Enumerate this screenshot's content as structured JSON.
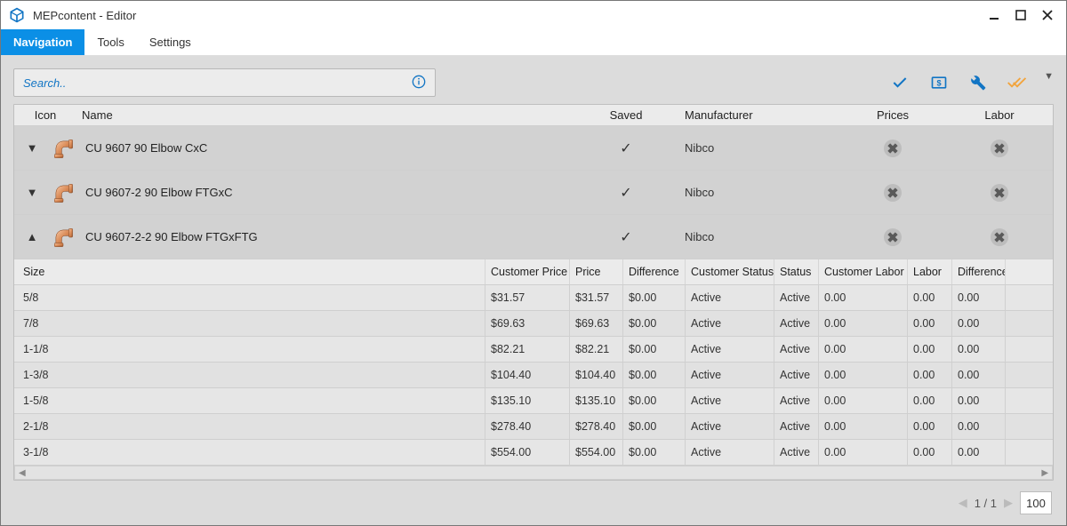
{
  "window": {
    "title": "MEPcontent - Editor"
  },
  "menu": {
    "navigation": "Navigation",
    "tools": "Tools",
    "settings": "Settings"
  },
  "search": {
    "placeholder": "Search.."
  },
  "colors": {
    "accent": "#0b8fe6",
    "link": "#1275c4",
    "warn": "#f2a43c",
    "panel_bg": "#dcdcdc",
    "grid_border": "#cfcfcf"
  },
  "columns": {
    "icon": "Icon",
    "name": "Name",
    "saved": "Saved",
    "manufacturer": "Manufacturer",
    "prices": "Prices",
    "labor": "Labor"
  },
  "categories": [
    {
      "name": "CU 9607 90 Elbow CxC",
      "saved": true,
      "manufacturer": "Nibco",
      "expanded": false
    },
    {
      "name": "CU 9607-2 90 Elbow FTGxC",
      "saved": true,
      "manufacturer": "Nibco",
      "expanded": false
    },
    {
      "name": "CU 9607-2-2 90 Elbow FTGxFTG",
      "saved": true,
      "manufacturer": "Nibco",
      "expanded": true
    }
  ],
  "detail": {
    "columns": {
      "size": "Size",
      "customer_price": "Customer Price",
      "price": "Price",
      "difference": "Difference",
      "customer_status": "Customer Status",
      "status": "Status",
      "customer_labor": "Customer Labor",
      "labor": "Labor",
      "difference2": "Difference"
    },
    "rows": [
      {
        "size": "5/8",
        "customer_price": "$31.57",
        "price": "$31.57",
        "difference": "$0.00",
        "customer_status": "Active",
        "status": "Active",
        "customer_labor": "0.00",
        "labor": "0.00",
        "difference2": "0.00"
      },
      {
        "size": "7/8",
        "customer_price": "$69.63",
        "price": "$69.63",
        "difference": "$0.00",
        "customer_status": "Active",
        "status": "Active",
        "customer_labor": "0.00",
        "labor": "0.00",
        "difference2": "0.00"
      },
      {
        "size": "1-1/8",
        "customer_price": "$82.21",
        "price": "$82.21",
        "difference": "$0.00",
        "customer_status": "Active",
        "status": "Active",
        "customer_labor": "0.00",
        "labor": "0.00",
        "difference2": "0.00"
      },
      {
        "size": "1-3/8",
        "customer_price": "$104.40",
        "price": "$104.40",
        "difference": "$0.00",
        "customer_status": "Active",
        "status": "Active",
        "customer_labor": "0.00",
        "labor": "0.00",
        "difference2": "0.00"
      },
      {
        "size": "1-5/8",
        "customer_price": "$135.10",
        "price": "$135.10",
        "difference": "$0.00",
        "customer_status": "Active",
        "status": "Active",
        "customer_labor": "0.00",
        "labor": "0.00",
        "difference2": "0.00"
      },
      {
        "size": "2-1/8",
        "customer_price": "$278.40",
        "price": "$278.40",
        "difference": "$0.00",
        "customer_status": "Active",
        "status": "Active",
        "customer_labor": "0.00",
        "labor": "0.00",
        "difference2": "0.00"
      },
      {
        "size": "3-1/8",
        "customer_price": "$554.00",
        "price": "$554.00",
        "difference": "$0.00",
        "customer_status": "Active",
        "status": "Active",
        "customer_labor": "0.00",
        "labor": "0.00",
        "difference2": "0.00"
      }
    ]
  },
  "pager": {
    "text": "1 / 1",
    "page_size": "100"
  }
}
